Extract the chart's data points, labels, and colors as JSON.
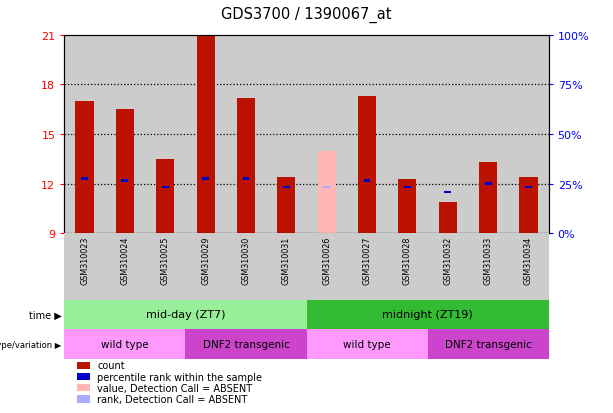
{
  "title": "GDS3700 / 1390067_at",
  "samples": [
    "GSM310023",
    "GSM310024",
    "GSM310025",
    "GSM310029",
    "GSM310030",
    "GSM310031",
    "GSM310026",
    "GSM310027",
    "GSM310028",
    "GSM310032",
    "GSM310033",
    "GSM310034"
  ],
  "count_values": [
    17.0,
    16.5,
    13.5,
    21.0,
    17.2,
    12.4,
    14.0,
    17.3,
    12.3,
    10.9,
    13.3,
    12.4
  ],
  "rank_values": [
    12.3,
    12.2,
    11.8,
    12.3,
    12.3,
    11.8,
    11.8,
    12.2,
    11.8,
    11.5,
    12.0,
    11.8
  ],
  "absent": [
    false,
    false,
    false,
    false,
    false,
    false,
    true,
    false,
    false,
    false,
    false,
    false
  ],
  "ymin": 9,
  "ymax": 21,
  "yticks": [
    9,
    12,
    15,
    18,
    21
  ],
  "grid_lines": [
    12,
    15,
    18
  ],
  "right_yticks_vals": [
    0,
    25,
    50,
    75,
    100
  ],
  "right_yticklabels": [
    "0%",
    "25%",
    "50%",
    "75%",
    "100%"
  ],
  "bar_color": "#BB1100",
  "bar_color_absent": "#FFB6B6",
  "rank_color": "#0000CC",
  "rank_color_absent": "#AAAAFF",
  "bg_color": "#CCCCCC",
  "time_midday_color": "#99EE99",
  "time_midnight_color": "#33BB33",
  "geno_wildtype_color": "#FF99FF",
  "geno_dnf2_color": "#CC44CC",
  "time_labels": [
    "mid-day (ZT7)",
    "midnight (ZT19)"
  ],
  "geno_labels": [
    "wild type",
    "DNF2 transgenic",
    "wild type",
    "DNF2 transgenic"
  ],
  "legend_items": [
    {
      "label": "count",
      "color": "#BB1100"
    },
    {
      "label": "percentile rank within the sample",
      "color": "#0000CC"
    },
    {
      "label": "value, Detection Call = ABSENT",
      "color": "#FFB6B6"
    },
    {
      "label": "rank, Detection Call = ABSENT",
      "color": "#AAAAFF"
    }
  ]
}
